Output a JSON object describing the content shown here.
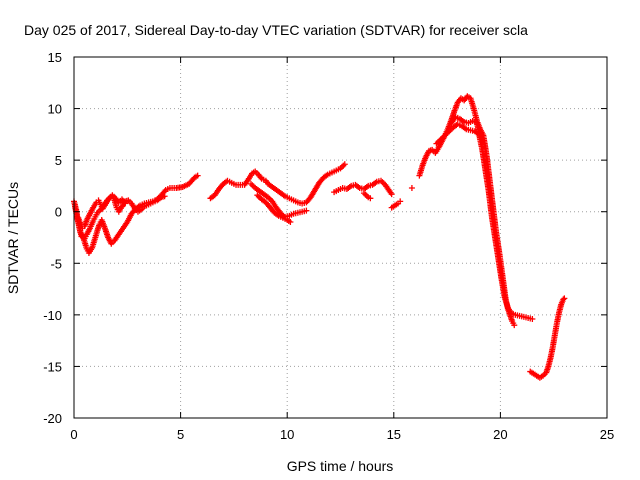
{
  "chart_data": {
    "type": "scatter",
    "title": "Day 025 of 2017, Sidereal Day-to-day VTEC variation (SDTVAR) for receiver scla",
    "xlabel": "GPS time / hours",
    "ylabel": "SDTVAR / TECUs",
    "xlim": [
      0,
      25
    ],
    "ylim": [
      -20,
      15
    ],
    "xticks": [
      0,
      5,
      10,
      15,
      20,
      25
    ],
    "yticks": [
      -20,
      -15,
      -10,
      -5,
      0,
      5,
      10,
      15
    ],
    "grid": true,
    "marker": "+",
    "color": "#ff0000",
    "tracks": [
      [
        [
          0.0,
          1.0
        ],
        [
          0.1,
          0.2
        ],
        [
          0.2,
          -1.0
        ],
        [
          0.3,
          -2.0
        ],
        [
          0.45,
          -2.6
        ],
        [
          0.6,
          -3.6
        ],
        [
          0.7,
          -4.0
        ],
        [
          0.85,
          -3.5
        ],
        [
          1.0,
          -2.5
        ],
        [
          1.1,
          -1.8
        ],
        [
          1.2,
          -1.2
        ],
        [
          1.3,
          -0.8
        ],
        [
          1.45,
          -1.6
        ],
        [
          1.6,
          -2.5
        ],
        [
          1.75,
          -3.1
        ],
        [
          1.9,
          -2.8
        ],
        [
          2.1,
          -2.2
        ],
        [
          2.3,
          -1.6
        ],
        [
          2.5,
          -1.0
        ],
        [
          2.7,
          -0.2
        ],
        [
          2.9,
          0.3
        ],
        [
          3.1,
          0.6
        ],
        [
          3.3,
          0.8
        ],
        [
          3.5,
          0.9
        ],
        [
          3.7,
          1.0
        ],
        [
          3.9,
          1.2
        ],
        [
          4.1,
          1.6
        ],
        [
          4.3,
          2.1
        ],
        [
          4.5,
          2.3
        ],
        [
          4.8,
          2.3
        ],
        [
          5.1,
          2.4
        ],
        [
          5.4,
          2.7
        ],
        [
          5.65,
          3.3
        ],
        [
          5.8,
          3.5
        ]
      ],
      [
        [
          0.05,
          0.5
        ],
        [
          0.15,
          -0.6
        ],
        [
          0.25,
          -1.5
        ],
        [
          0.35,
          -2.4
        ],
        [
          0.5,
          -2.6
        ],
        [
          0.6,
          -2.2
        ],
        [
          0.75,
          -1.6
        ],
        [
          0.9,
          -0.9
        ],
        [
          1.0,
          -0.5
        ],
        [
          1.1,
          -0.1
        ],
        [
          1.25,
          0.2
        ],
        [
          1.4,
          0.6
        ],
        [
          1.55,
          1.1
        ],
        [
          1.7,
          1.4
        ],
        [
          1.8,
          1.5
        ],
        [
          1.9,
          1.1
        ],
        [
          2.0,
          0.4
        ],
        [
          2.1,
          0.0
        ],
        [
          2.25,
          0.5
        ],
        [
          2.4,
          1.0
        ],
        [
          2.55,
          1.1
        ],
        [
          2.7,
          0.8
        ],
        [
          2.85,
          0.3
        ],
        [
          3.0,
          0.0
        ],
        [
          3.15,
          0.2
        ],
        [
          3.3,
          0.5
        ],
        [
          3.5,
          0.7
        ],
        [
          3.7,
          0.9
        ],
        [
          3.9,
          1.1
        ],
        [
          4.1,
          1.4
        ],
        [
          4.25,
          1.5
        ]
      ],
      [
        [
          0.2,
          -0.6
        ],
        [
          0.3,
          -1.2
        ],
        [
          0.4,
          -1.6
        ],
        [
          0.5,
          -1.4
        ],
        [
          0.6,
          -0.8
        ],
        [
          0.75,
          -0.2
        ],
        [
          0.9,
          0.4
        ],
        [
          1.05,
          0.9
        ],
        [
          1.15,
          1.1
        ],
        [
          1.25,
          0.7
        ],
        [
          1.35,
          0.3
        ],
        [
          1.5,
          0.8
        ],
        [
          1.65,
          1.3
        ],
        [
          1.8,
          1.6
        ],
        [
          1.95,
          1.3
        ],
        [
          2.1,
          0.9
        ],
        [
          2.25,
          1.2
        ],
        [
          2.4,
          0.8
        ]
      ],
      [
        [
          6.4,
          1.3
        ],
        [
          6.6,
          1.6
        ],
        [
          6.8,
          2.2
        ],
        [
          7.0,
          2.7
        ],
        [
          7.2,
          3.0
        ],
        [
          7.4,
          2.8
        ],
        [
          7.6,
          2.6
        ],
        [
          7.8,
          2.6
        ],
        [
          8.0,
          2.6
        ],
        [
          8.2,
          3.2
        ],
        [
          8.35,
          3.7
        ],
        [
          8.5,
          3.9
        ],
        [
          8.65,
          3.6
        ],
        [
          8.8,
          3.2
        ],
        [
          9.0,
          3.0
        ],
        [
          9.1,
          2.7
        ],
        [
          9.3,
          2.4
        ],
        [
          9.5,
          2.1
        ],
        [
          9.7,
          1.8
        ],
        [
          9.9,
          1.5
        ],
        [
          10.1,
          1.3
        ],
        [
          10.3,
          1.1
        ],
        [
          10.5,
          0.9
        ],
        [
          10.7,
          0.8
        ],
        [
          10.9,
          0.9
        ],
        [
          11.1,
          1.4
        ],
        [
          11.3,
          2.1
        ],
        [
          11.5,
          2.8
        ],
        [
          11.7,
          3.3
        ],
        [
          11.9,
          3.6
        ],
        [
          12.1,
          3.8
        ],
        [
          12.3,
          4.0
        ],
        [
          12.5,
          4.2
        ],
        [
          12.7,
          4.6
        ]
      ],
      [
        [
          8.3,
          2.7
        ],
        [
          8.5,
          2.3
        ],
        [
          8.7,
          2.0
        ],
        [
          8.9,
          1.7
        ],
        [
          9.1,
          1.4
        ],
        [
          9.3,
          1.0
        ],
        [
          9.45,
          0.5
        ],
        [
          9.6,
          0.1
        ],
        [
          9.75,
          -0.3
        ],
        [
          9.9,
          -0.5
        ],
        [
          10.1,
          -0.4
        ],
        [
          10.3,
          -0.2
        ],
        [
          10.5,
          -0.1
        ],
        [
          10.7,
          0.0
        ],
        [
          10.9,
          0.1
        ]
      ],
      [
        [
          8.6,
          1.6
        ],
        [
          8.8,
          1.2
        ],
        [
          9.0,
          0.9
        ],
        [
          9.2,
          0.4
        ],
        [
          9.4,
          -0.1
        ],
        [
          9.6,
          -0.4
        ],
        [
          9.8,
          -0.6
        ],
        [
          10.0,
          -0.8
        ],
        [
          10.15,
          -1.0
        ]
      ],
      [
        [
          12.2,
          1.9
        ],
        [
          12.4,
          2.1
        ],
        [
          12.6,
          2.3
        ],
        [
          12.8,
          2.2
        ],
        [
          13.0,
          2.5
        ],
        [
          13.2,
          2.6
        ],
        [
          13.4,
          2.3
        ],
        [
          13.6,
          2.2
        ],
        [
          13.8,
          2.5
        ],
        [
          14.0,
          2.6
        ],
        [
          14.2,
          2.9
        ],
        [
          14.4,
          3.0
        ],
        [
          14.6,
          2.6
        ],
        [
          14.8,
          2.0
        ],
        [
          14.9,
          1.7
        ]
      ],
      [
        [
          13.6,
          1.8
        ],
        [
          13.8,
          1.4
        ],
        [
          13.9,
          1.3
        ]
      ],
      [
        [
          14.9,
          0.4
        ],
        [
          15.05,
          0.6
        ],
        [
          15.2,
          0.8
        ],
        [
          15.3,
          1.0
        ]
      ],
      [
        [
          15.85,
          2.3
        ]
      ],
      [
        [
          16.2,
          3.5
        ],
        [
          16.35,
          4.5
        ],
        [
          16.5,
          5.3
        ],
        [
          16.65,
          5.9
        ],
        [
          16.8,
          6.0
        ],
        [
          16.95,
          5.7
        ],
        [
          17.1,
          6.2
        ],
        [
          17.25,
          6.8
        ],
        [
          17.4,
          7.4
        ],
        [
          17.55,
          8.1
        ],
        [
          17.7,
          8.9
        ],
        [
          17.85,
          9.8
        ],
        [
          18.0,
          10.6
        ],
        [
          18.15,
          11.0
        ],
        [
          18.3,
          10.8
        ],
        [
          18.45,
          11.2
        ],
        [
          18.6,
          11.0
        ],
        [
          18.75,
          10.0
        ],
        [
          18.9,
          8.8
        ],
        [
          19.05,
          8.0
        ],
        [
          19.2,
          7.4
        ],
        [
          19.35,
          5.5
        ],
        [
          19.5,
          3.0
        ],
        [
          19.65,
          0.5
        ],
        [
          19.8,
          -2.0
        ],
        [
          19.95,
          -4.0
        ],
        [
          20.05,
          -5.5
        ],
        [
          20.15,
          -7.0
        ],
        [
          20.25,
          -8.5
        ],
        [
          20.35,
          -9.4
        ],
        [
          20.45,
          -10.0
        ],
        [
          20.55,
          -10.6
        ],
        [
          20.65,
          -11.0
        ]
      ],
      [
        [
          17.0,
          6.6
        ],
        [
          17.2,
          7.0
        ],
        [
          17.4,
          7.4
        ],
        [
          17.6,
          7.8
        ],
        [
          17.8,
          8.2
        ],
        [
          18.0,
          8.5
        ],
        [
          18.2,
          8.3
        ],
        [
          18.4,
          8.0
        ],
        [
          18.6,
          7.9
        ],
        [
          18.8,
          7.8
        ],
        [
          19.0,
          7.5
        ],
        [
          19.15,
          6.0
        ],
        [
          19.3,
          4.0
        ],
        [
          19.45,
          2.0
        ],
        [
          19.6,
          -0.5
        ],
        [
          19.75,
          -2.5
        ],
        [
          19.9,
          -4.5
        ],
        [
          20.05,
          -6.5
        ],
        [
          20.2,
          -8.3
        ],
        [
          20.35,
          -9.3
        ],
        [
          20.5,
          -9.8
        ],
        [
          20.7,
          -10.0
        ],
        [
          20.9,
          -10.1
        ],
        [
          21.1,
          -10.2
        ],
        [
          21.3,
          -10.3
        ],
        [
          21.5,
          -10.4
        ]
      ],
      [
        [
          17.7,
          8.6
        ],
        [
          17.9,
          9.2
        ],
        [
          18.1,
          9.0
        ],
        [
          18.3,
          8.7
        ],
        [
          18.5,
          8.6
        ],
        [
          18.7,
          8.8
        ],
        [
          18.9,
          8.6
        ],
        [
          19.05,
          7.2
        ]
      ],
      [
        [
          21.4,
          -15.5
        ],
        [
          21.55,
          -15.7
        ],
        [
          21.7,
          -15.9
        ],
        [
          21.85,
          -16.1
        ],
        [
          22.0,
          -15.9
        ],
        [
          22.15,
          -15.6
        ],
        [
          22.25,
          -15.0
        ],
        [
          22.35,
          -14.2
        ],
        [
          22.45,
          -13.2
        ],
        [
          22.55,
          -12.0
        ],
        [
          22.65,
          -10.8
        ],
        [
          22.75,
          -9.8
        ],
        [
          22.85,
          -9.0
        ],
        [
          22.95,
          -8.5
        ],
        [
          23.0,
          -8.4
        ]
      ]
    ]
  }
}
